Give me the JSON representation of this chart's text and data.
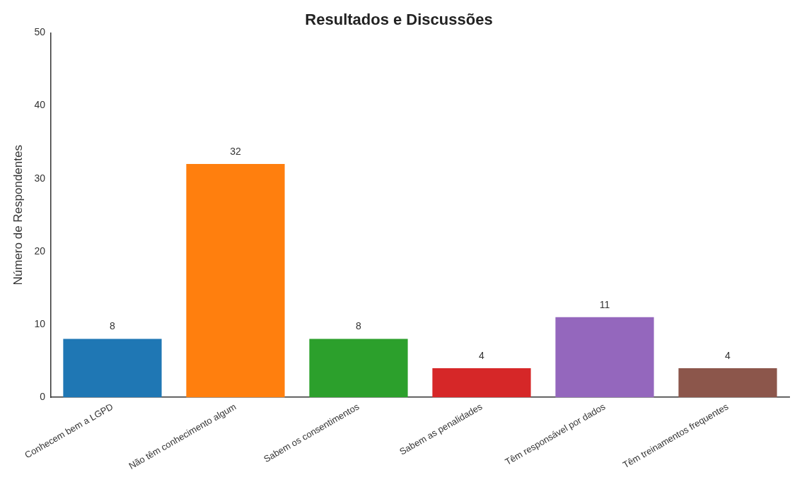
{
  "chart_data": {
    "type": "bar",
    "title": "Resultados e Discussões",
    "ylabel": "Número de Respondentes",
    "categories": [
      "Conhecem bem a LGPD",
      "Não têm conhecimento algum",
      "Sabem os consentimentos",
      "Sabem as penalidades",
      "Têm responsável por dados",
      "Têm treinamentos frequentes"
    ],
    "values": [
      8,
      32,
      8,
      4,
      11,
      4
    ],
    "colors": [
      "#1f77b4",
      "#ff7f0e",
      "#2ca02c",
      "#d62728",
      "#9467bd",
      "#8c564b"
    ],
    "ylim": [
      0,
      50
    ],
    "yticks": [
      0,
      10,
      20,
      30,
      40,
      50
    ],
    "grid": false,
    "legend": false,
    "data_labels": true
  }
}
